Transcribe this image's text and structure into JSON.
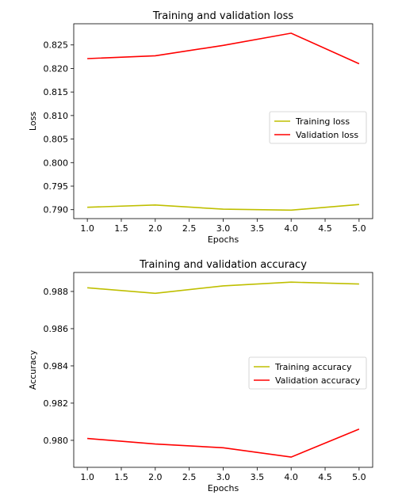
{
  "chart_data": [
    {
      "type": "line",
      "title": "Training and validation loss",
      "xlabel": "Epochs",
      "ylabel": "Loss",
      "xlim": [
        0.8,
        5.2
      ],
      "ylim": [
        0.7881,
        0.8295
      ],
      "xticks": [
        1.0,
        1.5,
        2.0,
        2.5,
        3.0,
        3.5,
        4.0,
        4.5,
        5.0
      ],
      "xtick_labels": [
        "1.0",
        "1.5",
        "2.0",
        "2.5",
        "3.0",
        "3.5",
        "4.0",
        "4.5",
        "5.0"
      ],
      "yticks": [
        0.79,
        0.795,
        0.8,
        0.805,
        0.81,
        0.815,
        0.82,
        0.825
      ],
      "ytick_labels": [
        "0.790",
        "0.795",
        "0.800",
        "0.805",
        "0.810",
        "0.815",
        "0.820",
        "0.825"
      ],
      "x": [
        1,
        2,
        3,
        4,
        5
      ],
      "series": [
        {
          "name": "Training loss",
          "color": "#bfbf00",
          "values": [
            0.7905,
            0.791,
            0.7901,
            0.7899,
            0.7911
          ]
        },
        {
          "name": "Validation loss",
          "color": "#ff0000",
          "values": [
            0.8221,
            0.8227,
            0.8249,
            0.8275,
            0.821
          ]
        }
      ],
      "legend": "center-right",
      "grid": false
    },
    {
      "type": "line",
      "title": "Training and validation accuracy",
      "xlabel": "Epochs",
      "ylabel": "Accuracy",
      "xlim": [
        0.8,
        5.2
      ],
      "ylim": [
        0.97855,
        0.98902
      ],
      "xticks": [
        1.0,
        1.5,
        2.0,
        2.5,
        3.0,
        3.5,
        4.0,
        4.5,
        5.0
      ],
      "xtick_labels": [
        "1.0",
        "1.5",
        "2.0",
        "2.5",
        "3.0",
        "3.5",
        "4.0",
        "4.5",
        "5.0"
      ],
      "yticks": [
        0.98,
        0.982,
        0.984,
        0.986,
        0.988
      ],
      "ytick_labels": [
        "0.980",
        "0.982",
        "0.984",
        "0.986",
        "0.988"
      ],
      "x": [
        1,
        2,
        3,
        4,
        5
      ],
      "series": [
        {
          "name": "Training accuracy",
          "color": "#bfbf00",
          "values": [
            0.9882,
            0.9879,
            0.9883,
            0.9885,
            0.9884
          ]
        },
        {
          "name": "Validation accuracy",
          "color": "#ff0000",
          "values": [
            0.9801,
            0.9798,
            0.9796,
            0.9791,
            0.9806
          ]
        }
      ],
      "legend": "center-right",
      "grid": false
    }
  ]
}
